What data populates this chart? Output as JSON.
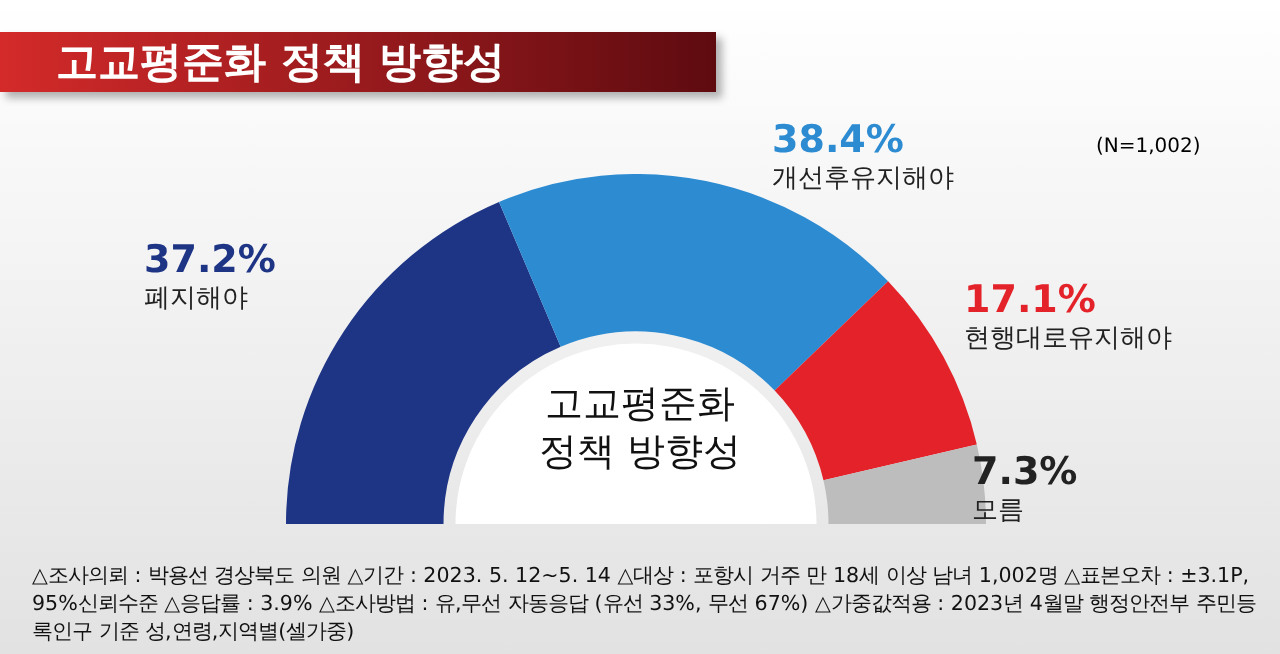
{
  "chart_data": {
    "type": "donut",
    "title": "고교평준화 정책 방향성",
    "categories": [
      "폐지해야",
      "개선후유지해야",
      "현행대로유지해야",
      "모름"
    ],
    "values": [
      37.2,
      38.4,
      17.1,
      7.3
    ],
    "colors": [
      "#1e3485",
      "#2d8bd2",
      "#e4222a",
      "#bdbdbd"
    ],
    "value_labels": [
      "37.2%",
      "38.4%",
      "17.1%",
      "7.3%"
    ],
    "legend": false,
    "annotations": [
      "고교평준화\n정책 방향성",
      "(N=1,002)",
      "△조사의뢰 : 박용선 경상북도 의원   △기간 : 2023. 5. 12~5. 14   △대상 : 포항시 거주 만 18세 이상 남녀 1,002명   △표본오차 : ±3.1P, 95%신뢰수준   △응답률 : 3.9%   △조사방법 : 유,무선 자동응답 (유선 33%, 무선 67%)   △가중값적용 : 2023년 4월말 행정안전부 주민등록인구 기준 성,연령,지역별(셀가중)"
    ]
  }
}
